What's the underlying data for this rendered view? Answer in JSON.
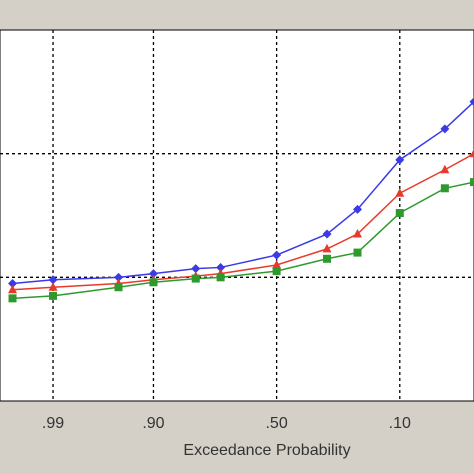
{
  "chart_data": {
    "type": "line",
    "xlabel": "Exceedance Probability",
    "x_ticks": [
      ".99",
      ".90",
      ".50",
      ".10"
    ],
    "x_tick_positions": [
      0.99,
      0.9,
      0.5,
      0.1
    ],
    "xlim": [
      0.998,
      0.02
    ],
    "ylim": [
      0,
      3
    ],
    "y_gridlines": [
      1,
      2
    ],
    "grid": true,
    "series": [
      {
        "color": "#3a3ae6",
        "marker": "diamond",
        "points": [
          [
            0.997,
            0.95
          ],
          [
            0.99,
            0.98
          ],
          [
            0.95,
            1.0
          ],
          [
            0.9,
            1.03
          ],
          [
            0.8,
            1.07
          ],
          [
            0.72,
            1.08
          ],
          [
            0.5,
            1.18
          ],
          [
            0.3,
            1.35
          ],
          [
            0.2,
            1.55
          ],
          [
            0.1,
            1.95
          ],
          [
            0.04,
            2.2
          ],
          [
            0.02,
            2.42
          ]
        ]
      },
      {
        "color": "#e83a2a",
        "marker": "triangle",
        "points": [
          [
            0.997,
            0.9
          ],
          [
            0.99,
            0.92
          ],
          [
            0.95,
            0.95
          ],
          [
            0.9,
            0.98
          ],
          [
            0.8,
            1.01
          ],
          [
            0.72,
            1.03
          ],
          [
            0.5,
            1.1
          ],
          [
            0.3,
            1.23
          ],
          [
            0.2,
            1.35
          ],
          [
            0.1,
            1.68
          ],
          [
            0.04,
            1.87
          ],
          [
            0.02,
            2.0
          ]
        ]
      },
      {
        "color": "#2e9a2e",
        "marker": "square",
        "points": [
          [
            0.997,
            0.83
          ],
          [
            0.99,
            0.85
          ],
          [
            0.95,
            0.92
          ],
          [
            0.9,
            0.96
          ],
          [
            0.8,
            0.99
          ],
          [
            0.72,
            1.0
          ],
          [
            0.5,
            1.05
          ],
          [
            0.3,
            1.15
          ],
          [
            0.2,
            1.2
          ],
          [
            0.1,
            1.52
          ],
          [
            0.04,
            1.72
          ],
          [
            0.02,
            1.77
          ]
        ]
      }
    ]
  }
}
